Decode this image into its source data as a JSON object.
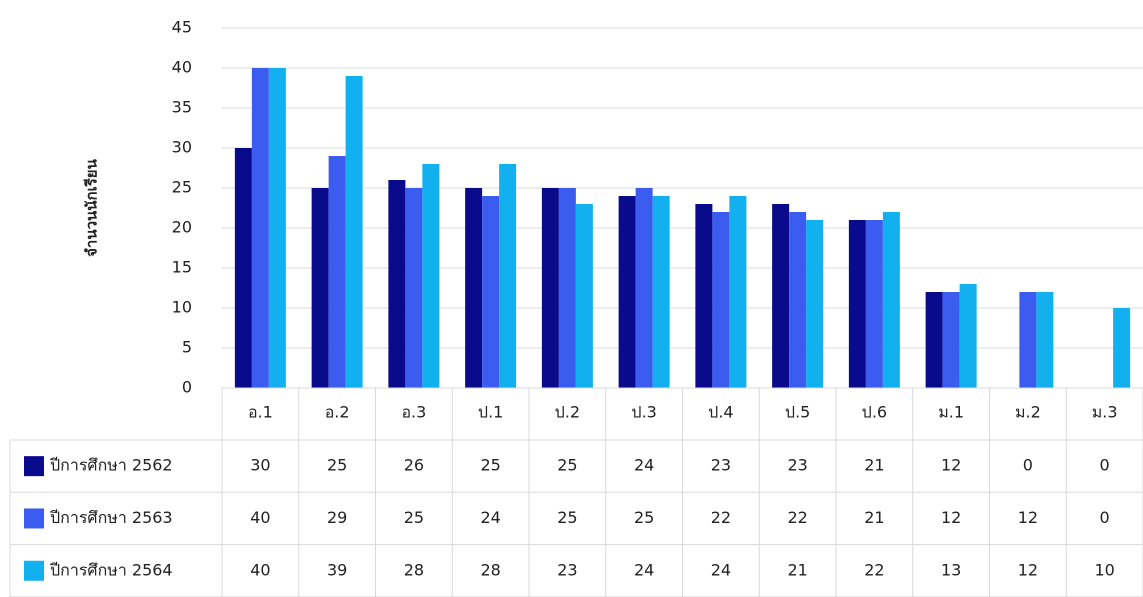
{
  "chart_data": {
    "type": "bar",
    "y_label": "จำนวนนักเรียน",
    "categories": [
      "อ.1",
      "อ.2",
      "อ.3",
      "ป.1",
      "ป.2",
      "ป.3",
      "ป.4",
      "ป.5",
      "ป.6",
      "ม.1",
      "ม.2",
      "ม.3"
    ],
    "series": [
      {
        "name": "ปีการศึกษา 2562",
        "color": "#0a0a8c",
        "values": [
          30,
          25,
          26,
          25,
          25,
          24,
          23,
          23,
          21,
          12,
          0,
          0
        ]
      },
      {
        "name": "ปีการศึกษา 2563",
        "color": "#3c5cf0",
        "values": [
          40,
          29,
          25,
          24,
          25,
          25,
          22,
          22,
          21,
          12,
          12,
          0
        ]
      },
      {
        "name": "ปีการศึกษา 2564",
        "color": "#12b0ee",
        "values": [
          40,
          39,
          28,
          28,
          23,
          24,
          24,
          21,
          22,
          13,
          12,
          10
        ]
      }
    ],
    "ylim": [
      0,
      45
    ],
    "yticks": [
      0,
      5,
      10,
      15,
      20,
      25,
      30,
      35,
      40,
      45
    ],
    "grid": true
  }
}
